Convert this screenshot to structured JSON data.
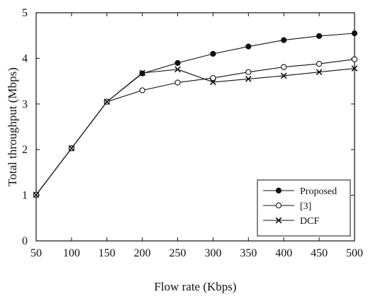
{
  "chart_data": {
    "type": "line",
    "title": "",
    "xlabel": "Flow rate (Kbps)",
    "ylabel": "Total throughput (Mbps)",
    "x": [
      50,
      100,
      150,
      200,
      250,
      300,
      350,
      400,
      450,
      500
    ],
    "xticks": [
      "50",
      "100",
      "150",
      "200",
      "250",
      "300",
      "350",
      "400",
      "450",
      "500"
    ],
    "yticks": [
      "0",
      "1",
      "2",
      "3",
      "4",
      "5"
    ],
    "xlim": [
      50,
      500
    ],
    "ylim": [
      0,
      5
    ],
    "grid": false,
    "legend_position": "bottom-right",
    "series": [
      {
        "name": "Proposed",
        "marker": "filled-circle",
        "values": [
          1.01,
          2.03,
          3.05,
          3.67,
          3.9,
          4.1,
          4.26,
          4.4,
          4.49,
          4.55
        ]
      },
      {
        "name": "[3]",
        "marker": "open-circle",
        "values": [
          1.01,
          2.03,
          3.05,
          3.3,
          3.47,
          3.57,
          3.7,
          3.81,
          3.88,
          3.98
        ]
      },
      {
        "name": "DCF",
        "marker": "cross",
        "values": [
          1.01,
          2.03,
          3.05,
          3.68,
          3.76,
          3.48,
          3.55,
          3.62,
          3.7,
          3.78
        ]
      }
    ],
    "colors": {
      "line": "#111111",
      "background": "#ffffff"
    }
  }
}
